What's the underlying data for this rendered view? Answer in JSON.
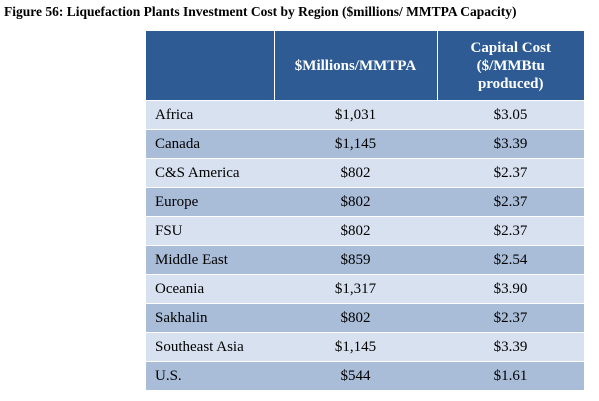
{
  "title": "Figure 56: Liquefaction Plants Investment Cost by Region ($millions/ MMTPA Capacity)",
  "table": {
    "headers": [
      "",
      "$Millions/MMTPA",
      "Capital Cost ($/MMBtu produced)"
    ],
    "header_lines": {
      "col2": [
        "$Millions/MMTPA"
      ],
      "col3": [
        "Capital Cost",
        "($/MMBtu",
        "produced)"
      ]
    },
    "rows": [
      {
        "region": "Africa",
        "millions_per_mmtpa": "$1,031",
        "capital_cost": "$3.05"
      },
      {
        "region": "Canada",
        "millions_per_mmtpa": "$1,145",
        "capital_cost": "$3.39"
      },
      {
        "region": "C&S America",
        "millions_per_mmtpa": "$802",
        "capital_cost": "$2.37"
      },
      {
        "region": "Europe",
        "millions_per_mmtpa": "$802",
        "capital_cost": "$2.37"
      },
      {
        "region": "FSU",
        "millions_per_mmtpa": "$802",
        "capital_cost": "$2.37"
      },
      {
        "region": "Middle East",
        "millions_per_mmtpa": "$859",
        "capital_cost": "$2.54"
      },
      {
        "region": "Oceania",
        "millions_per_mmtpa": "$1,317",
        "capital_cost": "$3.90"
      },
      {
        "region": "Sakhalin",
        "millions_per_mmtpa": "$802",
        "capital_cost": "$2.37"
      },
      {
        "region": "Southeast Asia",
        "millions_per_mmtpa": "$1,145",
        "capital_cost": "$3.39"
      },
      {
        "region": "U.S.",
        "millions_per_mmtpa": "$544",
        "capital_cost": "$1.61"
      }
    ]
  },
  "colors": {
    "header_bg": "#2e5b94",
    "row_light": "#d8e1ef",
    "row_dark": "#a9bcd8"
  }
}
